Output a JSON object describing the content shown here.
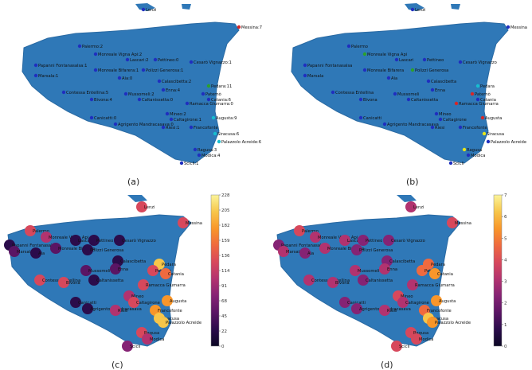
{
  "colors": {
    "sea_bg": "#ffffff",
    "land": "#2f78b7",
    "land_stroke": "#2a6aa3",
    "node_default": "#1f2fbf",
    "node_green": "#2ca02c",
    "node_red": "#d62728",
    "node_cyan": "#17becf",
    "node_yellow": "#e6e61a"
  },
  "panels": [
    {
      "id": "a",
      "label": "(a)"
    },
    {
      "id": "b",
      "label": "(b)"
    },
    {
      "id": "c",
      "label": "(c)"
    },
    {
      "id": "d",
      "label": "(d)"
    }
  ],
  "panel_a_labels": [
    "Lenzi",
    "Messina:7",
    "Palermo:2",
    "Monreale Vigna Api:2",
    "Lascari:2",
    "Pettineo:0",
    "Cesarò Vignazzo:1",
    "Papanni Fontanasalsa:1",
    "Monreale Bifarera:1",
    "Polizzi Generosa:1",
    "Marsala:1",
    "Aia:0",
    "Calascibetta:2",
    "Pedara:11",
    "Paternò",
    "Enna:4",
    "Mussomeli:2",
    "Catania:6",
    "Contessa Entellina:5",
    "Bivona:4",
    "Caltanissetta:0",
    "Ramacca Giumarra:0",
    "Mineo:2",
    "Caltagirone:1",
    "Augusta:9",
    "Francofonte",
    "Canicatti:0",
    "Agrigento Mandracasava:0",
    "Riesi:1",
    "Siracusa:6",
    "Palazzolo Acreide:6",
    "Ragusa:3",
    "Modica:4",
    "Scicli:1"
  ],
  "panel_b_labels": [
    "Lenzi",
    "Messina",
    "Palermo",
    "Monreale Vigna Api",
    "Lascari",
    "Pettineo",
    "Cesarò Vignazzo",
    "Papanni Fontanasalsa",
    "Monreale Bifarera",
    "Polizzi Generosa",
    "Marsala",
    "Aia",
    "Calascibetta",
    "Pedara",
    "Paternò",
    "Enna",
    "Mussomeli",
    "Catania",
    "Contessa Entellina",
    "Bivona",
    "Caltanissetta",
    "Ramacca Giumarra",
    "Mineo",
    "Caltagirone",
    "Augusta",
    "Francofonte",
    "Canicatti",
    "Agrigento Mandracasava",
    "Riesi",
    "Siracusa",
    "Palazzolo Acreide",
    "Ragusa",
    "Modica",
    "Scicli"
  ],
  "colorbar_c": {
    "ticks": [
      "228",
      "205",
      "182",
      "159",
      "136",
      "114",
      "91",
      "68",
      "45",
      "22",
      "0"
    ]
  },
  "colorbar_d": {
    "ticks": [
      "7",
      "6",
      "5",
      "4",
      "3",
      "2",
      "1",
      "0"
    ]
  }
}
